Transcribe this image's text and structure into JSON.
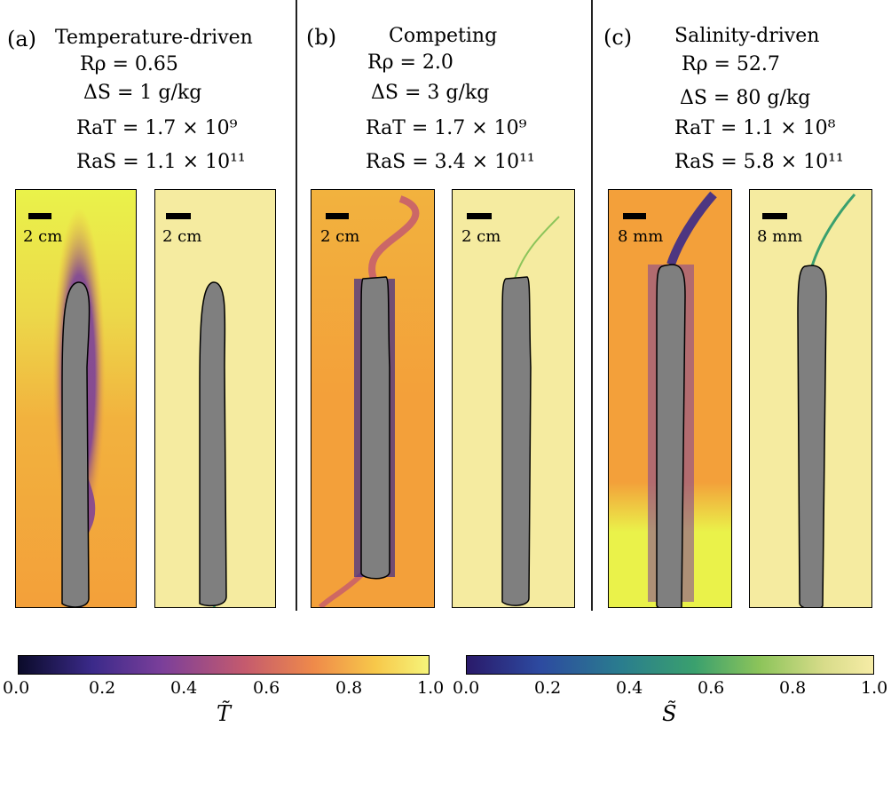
{
  "columns": [
    {
      "tag": "(a)",
      "title": "Temperature-driven",
      "r_rho": "Rρ = 0.65",
      "delta_s": "ΔS = 1 g/kg",
      "ra_t": "RaT = 1.7 × 10⁹",
      "ra_s": "RaS = 1.1 × 10¹¹",
      "scale_t": "2 cm",
      "scale_s": "2 cm"
    },
    {
      "tag": "(b)",
      "title": "Competing",
      "r_rho": "Rρ = 2.0",
      "delta_s": "ΔS = 3 g/kg",
      "ra_t": "RaT = 1.7 × 10⁹",
      "ra_s": "RaS = 3.4 × 10¹¹",
      "scale_t": "2 cm",
      "scale_s": "2 cm"
    },
    {
      "tag": "(c)",
      "title": "Salinity-driven",
      "r_rho": "Rρ = 52.7",
      "delta_s": "ΔS = 80 g/kg",
      "ra_t": "RaT = 1.1 × 10⁸",
      "ra_s": "RaS = 5.8 × 10¹¹",
      "scale_t": "8 mm",
      "scale_s": "8 mm"
    }
  ],
  "colorbars": {
    "temperature": {
      "label": "T̃",
      "ticks": [
        "0.0",
        "0.2",
        "0.4",
        "0.6",
        "0.8",
        "1.0"
      ],
      "colormap": [
        "#0b0b2a",
        "#3b2a8a",
        "#7b3f9a",
        "#c45a6e",
        "#ef8a4a",
        "#f7c84a",
        "#f6f47a"
      ]
    },
    "salinity": {
      "label": "S̃",
      "ticks": [
        "0.0",
        "0.2",
        "0.4",
        "0.6",
        "0.8",
        "1.0"
      ],
      "colormap": [
        "#2a1a6a",
        "#2d4aa0",
        "#2a7d8e",
        "#3aa06e",
        "#8cc45a",
        "#d8dc8a",
        "#f6eca6"
      ]
    }
  },
  "colors": {
    "body": "#7f7f7f",
    "warm_background": "#f3a53c",
    "light_background": "#f5eba0",
    "lime_background": "#eaf24a"
  }
}
